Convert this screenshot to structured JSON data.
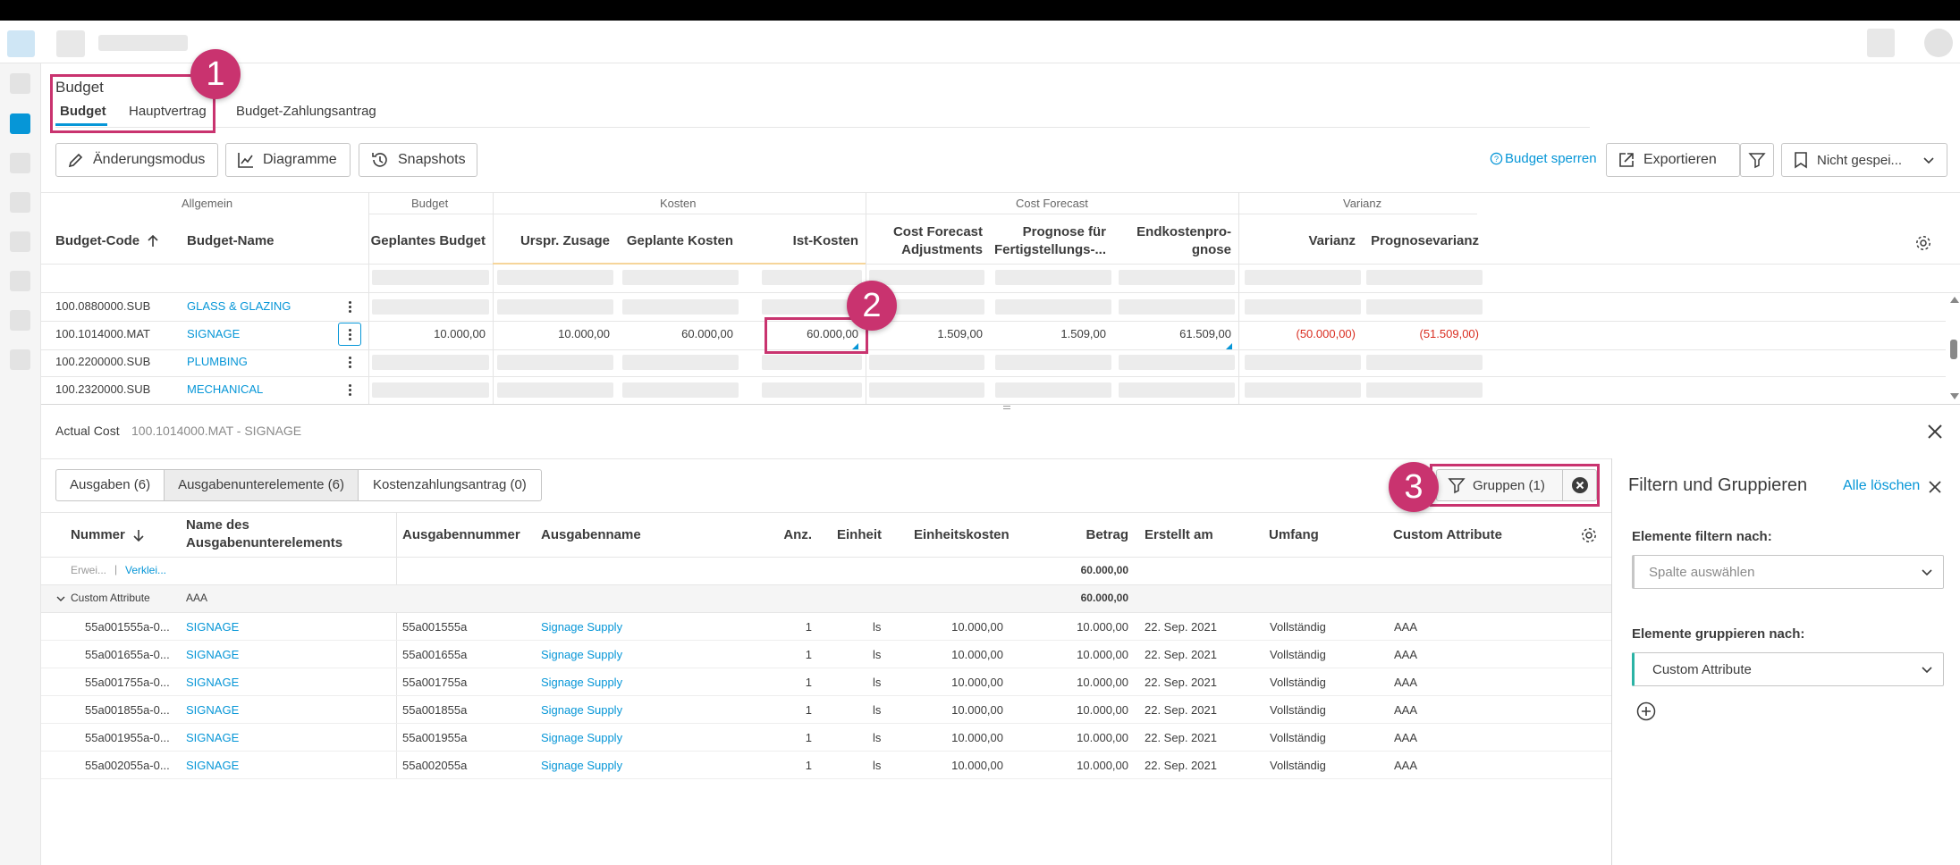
{
  "page": {
    "title": "Budget"
  },
  "tabs": [
    "Budget",
    "Hauptvertrag",
    "Budget-Zahlungsantrag"
  ],
  "toolbar": {
    "change_mode": "Änderungsmodus",
    "charts": "Diagramme",
    "snapshots": "Snapshots",
    "lock_budget": "Budget sperren",
    "export": "Exportieren",
    "view_select": "Nicht gespei..."
  },
  "grid": {
    "groups": [
      "Allgemein",
      "Budget",
      "Kosten",
      "Cost Forecast",
      "Varianz"
    ],
    "columns": {
      "code": "Budget-Code",
      "name": "Budget-Name",
      "planned_budget": "Geplantes Budget",
      "orig_commitment": "Urspr. Zusage",
      "planned_cost": "Geplante Kosten",
      "actual_cost": "Ist-Kosten",
      "cfa_1": "Cost Forecast",
      "cfa_2": "Adjustments",
      "ftc_1": "Prognose für",
      "ftc_2": "Fertigstellungs-...",
      "eac_1": "Endkostenpro-",
      "eac_2": "gnose",
      "variance": "Varianz",
      "forecast_variance": "Prognosevarianz"
    },
    "rows": [
      {
        "code": "100.0880000.SUB",
        "name": "GLASS & GLAZING"
      },
      {
        "code": "100.1014000.MAT",
        "name": "SIGNAGE",
        "planned_budget": "10.000,00",
        "orig_commitment": "10.000,00",
        "planned_cost": "60.000,00",
        "actual_cost": "60.000,00",
        "cfa": "1.509,00",
        "ftc": "1.509,00",
        "eac": "61.509,00",
        "variance": "(50.000,00)",
        "forecast_variance": "(51.509,00)"
      },
      {
        "code": "100.2200000.SUB",
        "name": "PLUMBING"
      },
      {
        "code": "100.2320000.SUB",
        "name": "MECHANICAL"
      }
    ]
  },
  "detail": {
    "title": "Actual Cost",
    "subtitle": "100.1014000.MAT - SIGNAGE",
    "tabs": [
      "Ausgaben (6)",
      "Ausgabenunterelemente (6)",
      "Kostenzahlungsantrag (0)"
    ],
    "groups_button": "Gruppen (1)",
    "columns": {
      "number": "Nummer",
      "name_1": "Name des",
      "name_2": "Ausgabenunterelements",
      "expense_number": "Ausgabennummer",
      "expense_name": "Ausgabenname",
      "qty": "Anz.",
      "unit": "Einheit",
      "unit_cost": "Einheitskosten",
      "amount": "Betrag",
      "created": "Erstellt am",
      "scope": "Umfang",
      "custom": "Custom Attribute"
    },
    "expand": "Erwei...",
    "collapse": "Verklei...",
    "total_amount": "60.000,00",
    "group": {
      "label": "Custom Attribute",
      "value": "AAA",
      "amount": "60.000,00"
    },
    "rows": [
      {
        "number": "55a001555a-0...",
        "name": "SIGNAGE",
        "expense_number": "55a001555a",
        "expense_name": "Signage Supply",
        "qty": "1",
        "unit": "ls",
        "unit_cost": "10.000,00",
        "amount": "10.000,00",
        "created": "22. Sep. 2021",
        "scope": "Vollständig",
        "custom": "AAA"
      },
      {
        "number": "55a001655a-0...",
        "name": "SIGNAGE",
        "expense_number": "55a001655a",
        "expense_name": "Signage Supply",
        "qty": "1",
        "unit": "ls",
        "unit_cost": "10.000,00",
        "amount": "10.000,00",
        "created": "22. Sep. 2021",
        "scope": "Vollständig",
        "custom": "AAA"
      },
      {
        "number": "55a001755a-0...",
        "name": "SIGNAGE",
        "expense_number": "55a001755a",
        "expense_name": "Signage Supply",
        "qty": "1",
        "unit": "ls",
        "unit_cost": "10.000,00",
        "amount": "10.000,00",
        "created": "22. Sep. 2021",
        "scope": "Vollständig",
        "custom": "AAA"
      },
      {
        "number": "55a001855a-0...",
        "name": "SIGNAGE",
        "expense_number": "55a001855a",
        "expense_name": "Signage Supply",
        "qty": "1",
        "unit": "ls",
        "unit_cost": "10.000,00",
        "amount": "10.000,00",
        "created": "22. Sep. 2021",
        "scope": "Vollständig",
        "custom": "AAA"
      },
      {
        "number": "55a001955a-0...",
        "name": "SIGNAGE",
        "expense_number": "55a001955a",
        "expense_name": "Signage Supply",
        "qty": "1",
        "unit": "ls",
        "unit_cost": "10.000,00",
        "amount": "10.000,00",
        "created": "22. Sep. 2021",
        "scope": "Vollständig",
        "custom": "AAA"
      },
      {
        "number": "55a002055a-0...",
        "name": "SIGNAGE",
        "expense_number": "55a002055a",
        "expense_name": "Signage Supply",
        "qty": "1",
        "unit": "ls",
        "unit_cost": "10.000,00",
        "amount": "10.000,00",
        "created": "22. Sep. 2021",
        "scope": "Vollständig",
        "custom": "AAA"
      }
    ]
  },
  "filter_panel": {
    "title": "Filtern und Gruppieren",
    "clear_all": "Alle löschen",
    "filter_label": "Elemente filtern nach:",
    "filter_placeholder": "Spalte auswählen",
    "group_label": "Elemente gruppieren nach:",
    "group_value": "Custom Attribute"
  },
  "callouts": [
    "1",
    "2",
    "3"
  ],
  "colors": {
    "accent": "#0696d7",
    "callout": "#c9336f",
    "negative": "#d92d20"
  }
}
